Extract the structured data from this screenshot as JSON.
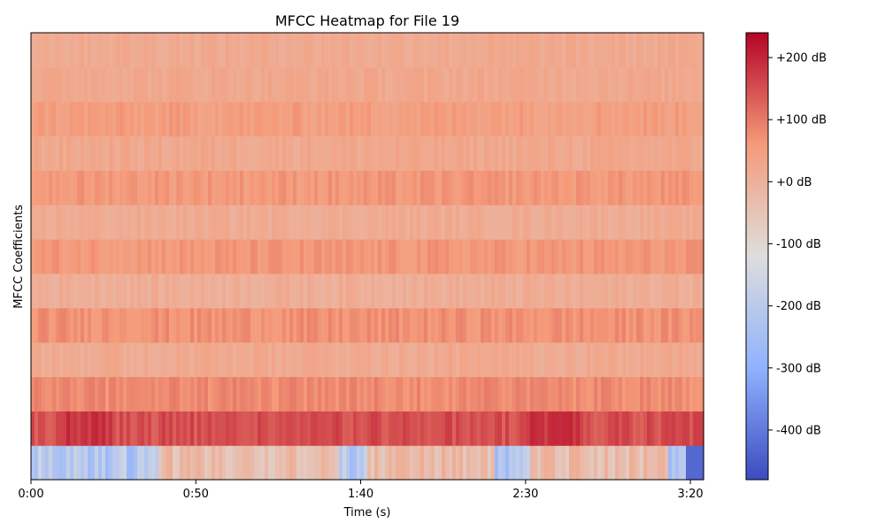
{
  "chart_data": {
    "type": "heatmap",
    "title": "MFCC Heatmap for File 19",
    "xlabel": "Time (s)",
    "ylabel": "MFCC Coefficients",
    "xlim": [
      0,
      204
    ],
    "x_ticks": [
      {
        "value": 0,
        "label": "0:00"
      },
      {
        "value": 50,
        "label": "0:50"
      },
      {
        "value": 100,
        "label": "1:40"
      },
      {
        "value": 150,
        "label": "2:30"
      },
      {
        "value": 200,
        "label": "3:20"
      }
    ],
    "n_coefficients": 13,
    "coefficient_mean_db": [
      -200,
      150,
      80,
      20,
      70,
      10,
      60,
      15,
      60,
      25,
      50,
      25,
      20
    ],
    "coefficient_variation_db": [
      130,
      50,
      40,
      35,
      40,
      35,
      40,
      30,
      40,
      35,
      40,
      30,
      30
    ],
    "colorbar": {
      "vmin": -480,
      "vmax": 240,
      "colormap": "coolwarm",
      "ticks": [
        {
          "value": 200,
          "label": "+200 dB"
        },
        {
          "value": 100,
          "label": "+100 dB"
        },
        {
          "value": 0,
          "label": "+0 dB"
        },
        {
          "value": -100,
          "label": "-100 dB"
        },
        {
          "value": -200,
          "label": "-200 dB"
        },
        {
          "value": -300,
          "label": "-300 dB"
        },
        {
          "value": -400,
          "label": "-400 dB"
        }
      ]
    }
  }
}
